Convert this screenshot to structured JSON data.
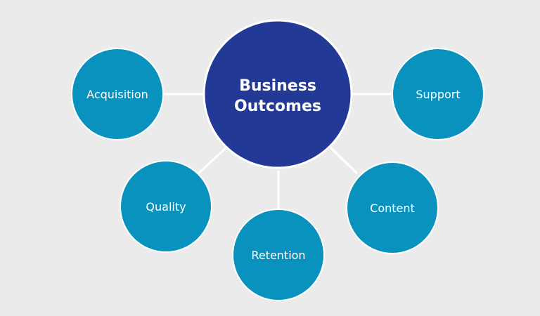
{
  "colors": {
    "background": "#ebebeb",
    "center_fill": "#223a95",
    "outer_fill": "#0a92bf",
    "stroke": "#ffffff",
    "connector": "#ffffff"
  },
  "center": {
    "line1": "Business",
    "line2": "Outcomes"
  },
  "nodes": {
    "acquisition": "Acquisition",
    "support": "Support",
    "quality": "Quality",
    "retention": "Retention",
    "content": "Content"
  }
}
